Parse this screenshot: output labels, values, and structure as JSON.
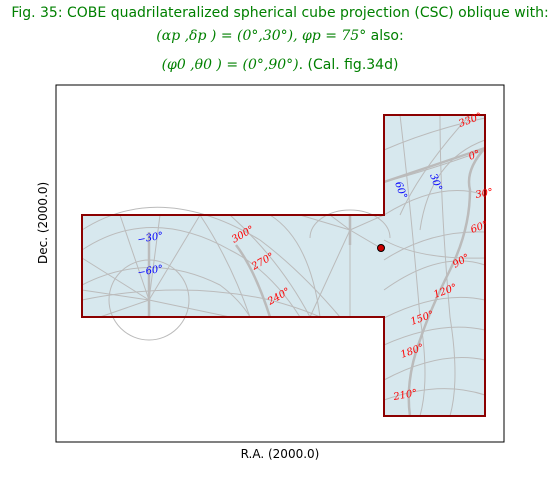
{
  "chart_data": {
    "type": "map",
    "title_line1": "Fig. 35: COBE quadrilateralized spherical cube projection (CSC) oblique with:",
    "title_line2_math": "(αp ,δp ) = (0°,30°), φp = 75°",
    "title_line2_text": " also:",
    "title_line3_math": "(φ0 ,θ0 ) = (0°,90°)",
    "title_line3_text": ". (Cal. fig.34d)",
    "xlabel": "R.A. (2000.0)",
    "ylabel": "Dec. (2000.0)",
    "grid": true,
    "longitude_labels": [
      "330°",
      "0°",
      "30°",
      "60°",
      "90°",
      "120°",
      "150°",
      "180°",
      "210°",
      "240°",
      "270°",
      "300°"
    ],
    "latitude_labels": [
      "60°",
      "30°",
      "−30°",
      "−60°"
    ],
    "colors": {
      "title": "#008000",
      "face_fill": "#d7e8ee",
      "boundary": "#8b0000",
      "graticule": "#bbbbbb",
      "longitude_labels": "#ff0000",
      "latitude_labels": "#0000ff",
      "marker": "#cc0000"
    }
  }
}
